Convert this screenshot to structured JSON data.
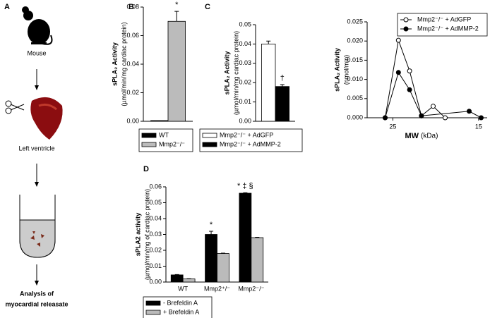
{
  "panel_a": {
    "label": "A",
    "steps": [
      "Mouse",
      "Left ventricle"
    ],
    "result": [
      "Analysis of",
      "myocardial releasate"
    ]
  },
  "chart_data": [
    {
      "type": "bar",
      "panel": "B",
      "ylabel": "sPLA₂ Activity",
      "ylabel_unit": "(µmol/min/mg cardiac protein)",
      "series": [
        {
          "name": "WT",
          "color": "#000000",
          "values": [
            0.0005
          ]
        },
        {
          "name": "Mmp2⁻/⁻",
          "color": "#bbbbbb",
          "values": [
            0.07
          ],
          "errors": [
            0.007
          ],
          "annotations": [
            "*"
          ]
        }
      ],
      "ylim": [
        0,
        0.08
      ],
      "yticks": [
        {
          "value": 0,
          "label": "0.00"
        },
        {
          "value": 0.02,
          "label": "0.02"
        },
        {
          "value": 0.04,
          "label": "0.04"
        },
        {
          "value": 0.06,
          "label": "0.06"
        },
        {
          "value": 0.08,
          "label": "0.08"
        }
      ]
    },
    {
      "type": "bar",
      "panel": "C",
      "ylabel": "sPLA₂ Activity",
      "ylabel_unit": "(µmol/min/mg cardiac protein)",
      "series": [
        {
          "name": "Mmp2⁻/⁻ + AdGFP",
          "color": "#ffffff",
          "values": [
            0.04
          ],
          "errors": [
            0.0015
          ]
        },
        {
          "name": "Mmp2⁻/⁻ + AdMMP-2",
          "color": "#000000",
          "values": [
            0.018
          ],
          "errors": [
            0.001
          ],
          "annotations": [
            "†"
          ]
        }
      ],
      "ylim": [
        0,
        0.05
      ],
      "yticks": [
        {
          "value": 0,
          "label": "0.00"
        },
        {
          "value": 0.01,
          "label": "0.01"
        },
        {
          "value": 0.02,
          "label": "0.02"
        },
        {
          "value": 0.03,
          "label": "0.03"
        },
        {
          "value": 0.04,
          "label": "0.04"
        },
        {
          "value": 0.05,
          "label": "0.05"
        }
      ]
    },
    {
      "type": "line",
      "ylabel": "sPLA₂ Activity",
      "ylabel_unit": "(nmol/min)",
      "xlabel": "MW",
      "xlabel_unit": "(kDa)",
      "series": [
        {
          "name": "Mmp2⁻/⁻ + AdGFP",
          "color": "#ffffff",
          "x": [
            25.9,
            24.35,
            23.05,
            21.67,
            20.3,
            18.9
          ],
          "values": [
            0,
            0.0202,
            0.0122,
            0.0005,
            0.003,
            0
          ]
        },
        {
          "name": "Mmp2⁻/⁻ + AdMMP-2",
          "color": "#000000",
          "x": [
            25.9,
            24.35,
            23.05,
            21.67,
            16.1,
            14.7
          ],
          "values": [
            0,
            0.0118,
            0.0073,
            0.0005,
            0.0017,
            0
          ]
        }
      ],
      "xlim": [
        28,
        14
      ],
      "xticks": [
        25,
        15
      ],
      "ylim": [
        0,
        0.025
      ],
      "yticks": [
        {
          "value": 0,
          "label": "0.000"
        },
        {
          "value": 0.005,
          "label": "0.005"
        },
        {
          "value": 0.01,
          "label": "0.010"
        },
        {
          "value": 0.015,
          "label": "0.015"
        },
        {
          "value": 0.02,
          "label": "0.020"
        },
        {
          "value": 0.025,
          "label": "0.025"
        }
      ]
    },
    {
      "type": "bar",
      "panel": "D",
      "ylabel": "sPLA2 activity",
      "ylabel_unit": "(µmol/min/mg of cardiac protein)",
      "categories": [
        "WT",
        "Mmp2⁺/⁻",
        "Mmp2⁻/⁻"
      ],
      "series": [
        {
          "name": "-  Brefeldin A",
          "color": "#000000",
          "values": [
            0.0045,
            0.03,
            0.056
          ],
          "errors": [
            0.0002,
            0.002,
            0.0003
          ],
          "annotations": [
            null,
            "*",
            "* ‡ §"
          ]
        },
        {
          "name": "+ Brefeldin A",
          "color": "#bbbbbb",
          "values": [
            0.002,
            0.018,
            0.028
          ],
          "errors": [
            0.0001,
            0.0002,
            0.0002
          ]
        }
      ],
      "ylim": [
        0,
        0.06
      ],
      "yticks": [
        {
          "value": 0,
          "label": "0.00"
        },
        {
          "value": 0.01,
          "label": "0.01"
        },
        {
          "value": 0.02,
          "label": "0.02"
        },
        {
          "value": 0.03,
          "label": "0.03"
        },
        {
          "value": 0.04,
          "label": "0.04"
        },
        {
          "value": 0.05,
          "label": "0.05"
        },
        {
          "value": 0.06,
          "label": "0.06"
        }
      ]
    }
  ]
}
